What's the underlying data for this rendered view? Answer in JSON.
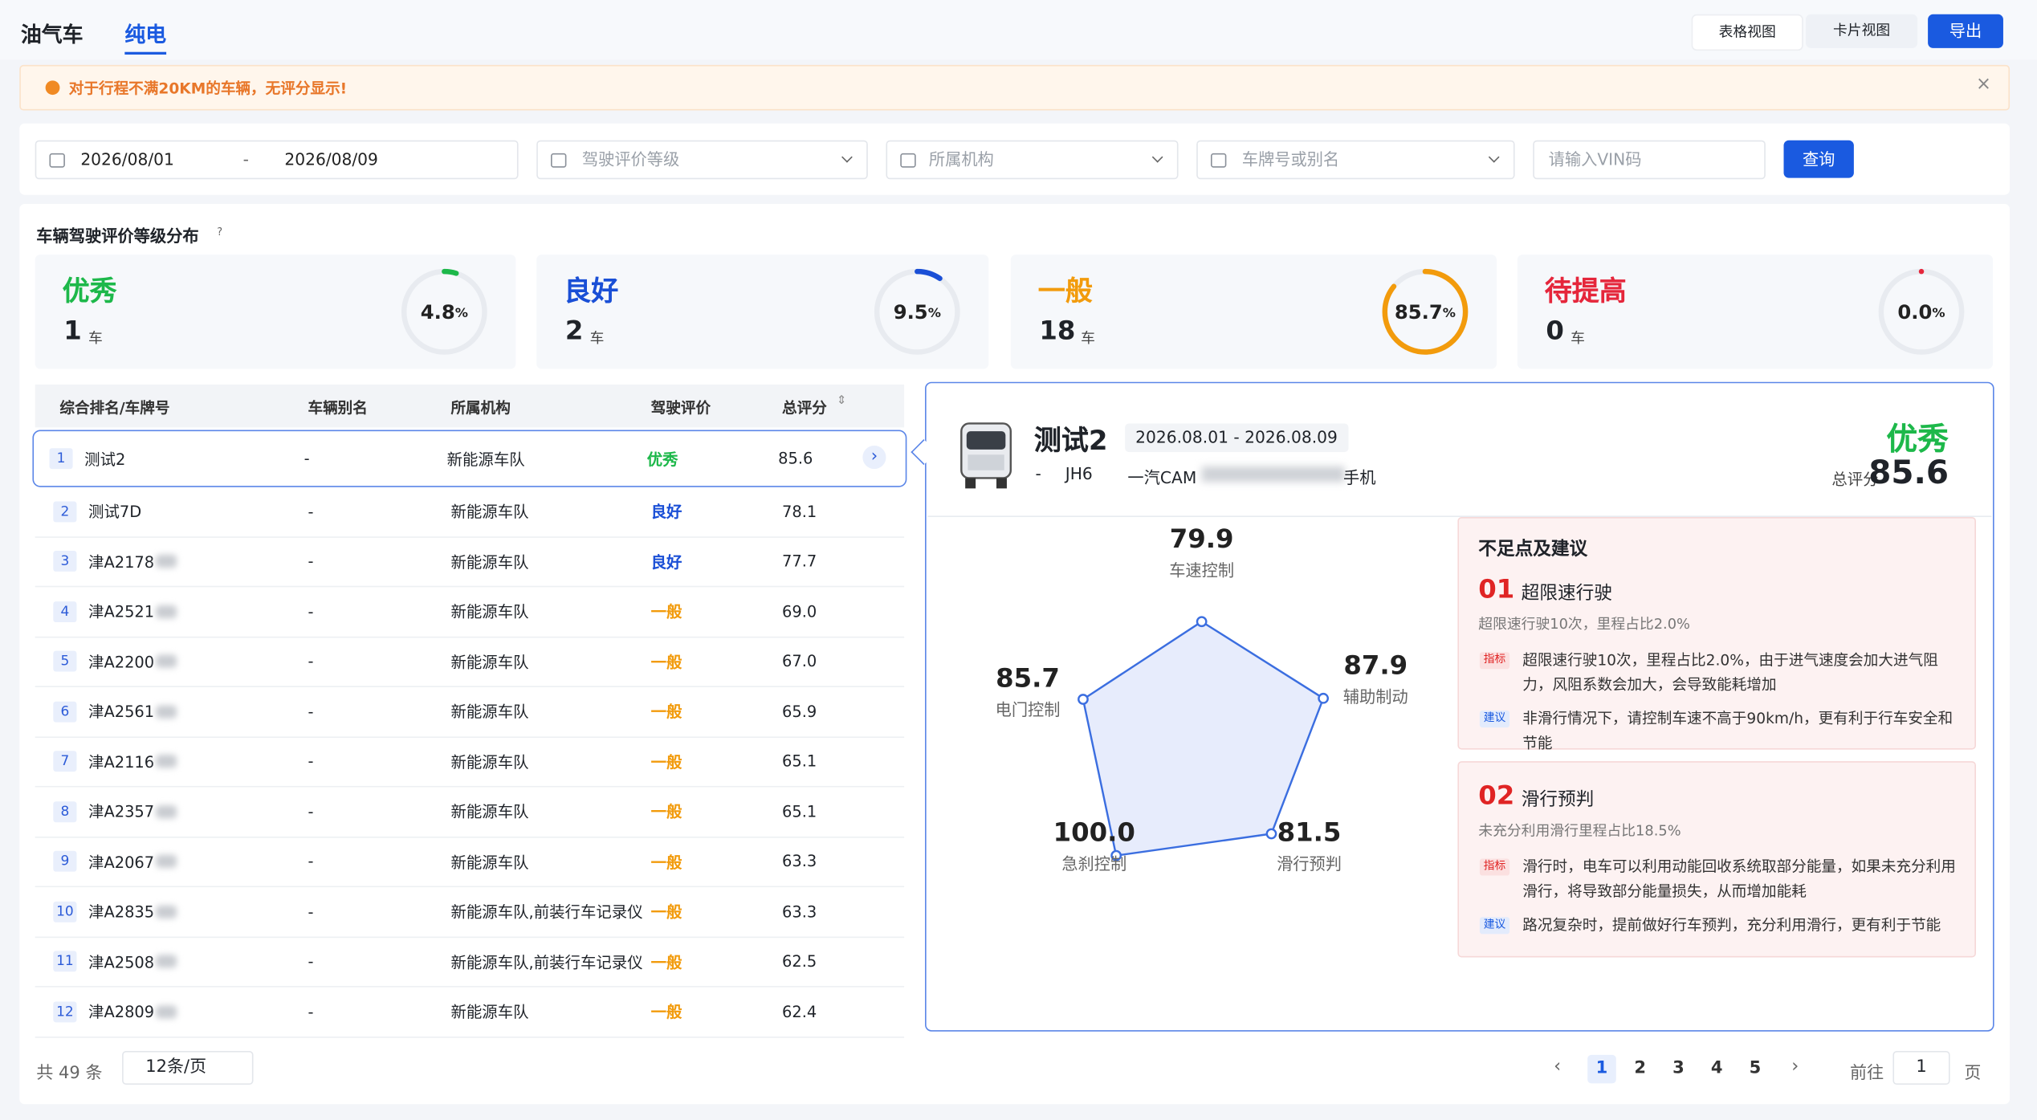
{
  "tabs": [
    "油气车",
    "纯电"
  ],
  "toolbar": {
    "table_view": "表格视图",
    "card_view": "卡片视图",
    "export": "导出"
  },
  "notice": {
    "text": "对于行程不满20KM的车辆，无评分显示!",
    "close": "×"
  },
  "filters": {
    "date_start": "2026/08/01",
    "date_sep": "-",
    "date_end": "2026/08/09",
    "rating": "驾驶评价等级",
    "org": "所属机构",
    "plate": "车牌号或别名",
    "vin": "请输入VIN码",
    "query": "查询"
  },
  "distribution": {
    "title": "车辆驾驶评价等级分布",
    "help": "?",
    "cards": [
      {
        "label": "优秀",
        "count": 1,
        "unit": "车",
        "percent": {
          "value": 4.8,
          "label": "4.8"
        },
        "percent_unit": "%",
        "color": "#1db84a"
      },
      {
        "label": "良好",
        "count": 2,
        "unit": "车",
        "percent": {
          "value": 9.5,
          "label": "9.5"
        },
        "percent_unit": "%",
        "color": "#1a4fd6"
      },
      {
        "label": "一般",
        "count": 18,
        "unit": "车",
        "percent": {
          "value": 85.7,
          "label": "85.7"
        },
        "percent_unit": "%",
        "color": "#f29b0c"
      },
      {
        "label": "待提高",
        "count": 0,
        "unit": "车",
        "percent": {
          "value": 0,
          "label": "0.0"
        },
        "percent_unit": "%",
        "color": "#e5263b"
      }
    ]
  },
  "table": {
    "columns": [
      "综合排名/车牌号",
      "车辆别名",
      "所属机构",
      "驾驶评价",
      "总评分"
    ],
    "rows": [
      [
        1,
        "测试2",
        "-",
        "新能源车队",
        "优秀",
        "85.6"
      ],
      [
        2,
        "测试7D",
        "-",
        "新能源车队",
        "良好",
        "78.1"
      ],
      [
        3,
        "津A2178",
        "-",
        "新能源车队",
        "良好",
        "77.7"
      ],
      [
        4,
        "津A2521",
        "-",
        "新能源车队",
        "一般",
        "69.0"
      ],
      [
        5,
        "津A2200",
        "-",
        "新能源车队",
        "一般",
        "67.0"
      ],
      [
        6,
        "津A2561",
        "-",
        "新能源车队",
        "一般",
        "65.9"
      ],
      [
        7,
        "津A2116",
        "-",
        "新能源车队",
        "一般",
        "65.1"
      ],
      [
        8,
        "津A2357",
        "-",
        "新能源车队",
        "一般",
        "65.1"
      ],
      [
        9,
        "津A2067",
        "-",
        "新能源车队",
        "一般",
        "63.3"
      ],
      [
        10,
        "津A2835",
        "-",
        "新能源车队,前装行车记录仪",
        "一般",
        "63.3"
      ],
      [
        11,
        "津A2508",
        "-",
        "新能源车队,前装行车记录仪",
        "一般",
        "62.5"
      ],
      [
        12,
        "津A2809",
        "-",
        "新能源车队",
        "一般",
        "62.4"
      ]
    ]
  },
  "pagination": {
    "total": "共 49 条",
    "page_size": "12条/页",
    "pages": [
      1,
      2,
      3,
      4,
      5
    ],
    "goto": "前往",
    "goto_value": 1,
    "page_unit": "页"
  },
  "detail": {
    "name": "测试2",
    "date_range": "2026.08.01 - 2026.08.09",
    "alias": "-",
    "model": "JH6",
    "org_start": "一汽CAM",
    "org_end": "手机",
    "rating": "优秀",
    "score_label": "总评分",
    "score": "85.6",
    "radar": [
      {
        "name": "车速控制",
        "value": 79.9,
        "label": "79.9"
      },
      {
        "name": "辅助制动",
        "value": 87.9,
        "label": "87.9"
      },
      {
        "name": "滑行预判",
        "value": 81.5,
        "label": "81.5"
      },
      {
        "name": "急刹控制",
        "value": 100,
        "label": "100.0"
      },
      {
        "name": "电门控制",
        "value": 85.7,
        "label": "85.7"
      }
    ],
    "suggestions": {
      "title": "不足点及建议",
      "items": [
        {
          "num": "01",
          "title": "超限速行驶",
          "summary": "超限速行驶10次，里程占比2.0%",
          "indicator_tag": "指标",
          "indicator": "超限速行驶10次，里程占比2.0%，由于进气速度会加大进气阻力，风阻系数会加大，会导致能耗增加",
          "advice_tag": "建议",
          "advice": "非滑行情况下，请控制车速不高于90km/h，更有利于行车安全和节能"
        },
        {
          "num": "02",
          "title": "滑行预判",
          "summary": "未充分利用滑行里程占比18.5%",
          "indicator_tag": "指标",
          "indicator": "滑行时，电车可以利用动能回收系统取部分能量，如果未充分利用滑行，将导致部分能量损失，从而增加能耗",
          "advice_tag": "建议",
          "advice": "路况复杂时，提前做好行车预判，充分利用滑行，更有利于节能"
        }
      ]
    }
  }
}
